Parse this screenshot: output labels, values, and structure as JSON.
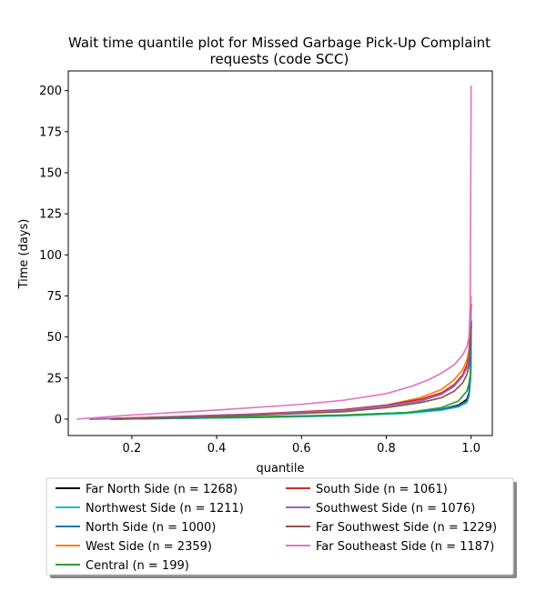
{
  "chart_data": {
    "type": "line",
    "title": "Wait time quantile plot for Missed Garbage Pick-Up Complaint requests (code SCC)",
    "title_lines": [
      "Wait time quantile plot for Missed Garbage Pick-Up Complaint",
      "requests (code SCC)"
    ],
    "xlabel": "quantile",
    "ylabel": "Time (days)",
    "xlim": [
      0.05,
      1.05
    ],
    "ylim": [
      -10,
      212
    ],
    "xticks": [
      0.2,
      0.4,
      0.6,
      0.8,
      1.0
    ],
    "xtick_labels": [
      "0.2",
      "0.4",
      "0.6",
      "0.8",
      "1.0"
    ],
    "yticks": [
      0,
      25,
      50,
      75,
      100,
      125,
      150,
      175,
      200
    ],
    "ytick_labels": [
      "0",
      "25",
      "50",
      "75",
      "100",
      "125",
      "150",
      "175",
      "200"
    ],
    "grid": false,
    "legend_placement": "below",
    "legend_columns": 2,
    "series": [
      {
        "name": "Far North Side (n = 1268)",
        "color": "#000000",
        "x": [
          0.15,
          0.3,
          0.5,
          0.7,
          0.85,
          0.93,
          0.97,
          0.99,
          0.995,
          0.999,
          1.0
        ],
        "y": [
          0,
          0.5,
          1.2,
          2.2,
          4,
          6,
          8.5,
          12,
          16,
          30,
          60
        ]
      },
      {
        "name": "Northwest Side (n = 1211)",
        "color": "#17becf",
        "x": [
          0.15,
          0.3,
          0.5,
          0.7,
          0.85,
          0.93,
          0.97,
          0.99,
          0.995,
          0.999,
          1.0
        ],
        "y": [
          0,
          0.4,
          1,
          2,
          3.5,
          5.5,
          7.5,
          10,
          14,
          25,
          45
        ]
      },
      {
        "name": "North Side (n = 1000)",
        "color": "#1f77b4",
        "x": [
          0.15,
          0.3,
          0.5,
          0.7,
          0.85,
          0.93,
          0.97,
          0.99,
          0.995,
          0.999,
          1.0
        ],
        "y": [
          0,
          0.5,
          1.2,
          2.3,
          4,
          6,
          8,
          11,
          15,
          28,
          50
        ]
      },
      {
        "name": "West Side (n = 2359)",
        "color": "#ff7f0e",
        "x": [
          0.1,
          0.3,
          0.5,
          0.7,
          0.8,
          0.88,
          0.93,
          0.96,
          0.98,
          0.99,
          0.995,
          1.0
        ],
        "y": [
          0,
          1.2,
          3,
          5.5,
          8.5,
          13,
          18,
          24,
          30,
          36,
          42,
          75
        ]
      },
      {
        "name": "Central (n = 199)",
        "color": "#2ca02c",
        "x": [
          0.1,
          0.3,
          0.5,
          0.7,
          0.85,
          0.93,
          0.97,
          0.99,
          0.995,
          1.0
        ],
        "y": [
          0,
          0.8,
          1.5,
          2.5,
          4,
          7,
          11,
          17,
          22,
          30
        ]
      },
      {
        "name": "South Side (n = 1061)",
        "color": "#d62728",
        "x": [
          0.1,
          0.3,
          0.5,
          0.7,
          0.8,
          0.88,
          0.93,
          0.96,
          0.98,
          0.99,
          0.995,
          1.0
        ],
        "y": [
          0,
          1.5,
          3.2,
          5.8,
          8.5,
          12,
          16,
          21,
          27,
          33,
          38,
          70
        ]
      },
      {
        "name": "Southwest Side (n = 1076)",
        "color": "#9467bd",
        "x": [
          0.1,
          0.3,
          0.5,
          0.7,
          0.8,
          0.88,
          0.93,
          0.96,
          0.98,
          0.99,
          0.995,
          1.0
        ],
        "y": [
          0,
          1.3,
          3,
          5.3,
          8,
          11,
          15,
          20,
          26,
          31,
          36,
          65
        ]
      },
      {
        "name": "Far Southwest Side (n = 1229)",
        "color": "#8c564b",
        "x": [
          0.15,
          0.3,
          0.5,
          0.7,
          0.8,
          0.88,
          0.93,
          0.96,
          0.98,
          0.99,
          0.995,
          1.0
        ],
        "y": [
          0,
          1,
          2.5,
          4.5,
          7,
          10,
          13,
          17,
          22,
          27,
          32,
          55
        ]
      },
      {
        "name": "Far Southeast Side (n = 1187)",
        "color": "#e377c2",
        "x": [
          0.07,
          0.2,
          0.4,
          0.6,
          0.7,
          0.8,
          0.86,
          0.9,
          0.93,
          0.96,
          0.98,
          0.99,
          0.995,
          0.998,
          1.0
        ],
        "y": [
          0,
          2.5,
          5.5,
          9,
          11.5,
          15.5,
          20,
          24,
          28,
          33,
          39,
          44,
          50,
          70,
          203
        ]
      }
    ]
  }
}
